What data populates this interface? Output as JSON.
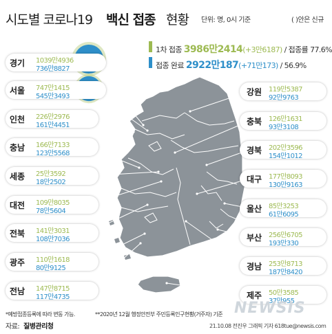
{
  "header": {
    "title_plain": "시도별 코로나19",
    "title_bold": "백신 접종",
    "title_end": "현황",
    "unit": "단위: 명, 0시 기준",
    "new_note": "( )안은 신규"
  },
  "legend": {
    "first": {
      "label": "1차 접종",
      "value": "3986만2414",
      "new": "(+3만6187)",
      "rate_label": "/ 접종률",
      "rate": "77.6%"
    },
    "complete": {
      "label": "접종 완료",
      "value": "2922만187",
      "new": "(+71만173)",
      "rate_sep": "/",
      "rate": "56.9%"
    }
  },
  "colors": {
    "first": "#9dba52",
    "complete": "#2e8fc9",
    "map_fill": "#8c9399",
    "map_stroke": "#ffffff",
    "bubble_ring": "#9dba52"
  },
  "chart_data": {
    "type": "bubble-map",
    "title": "시도별 코로나19 백신 접종 현황",
    "unit": "명",
    "series": [
      {
        "name": "1차 접종",
        "color": "#9dba52"
      },
      {
        "name": "접종 완료",
        "color": "#2e8fc9"
      }
    ],
    "regions": [
      {
        "name": "경기",
        "first": "1039만4936",
        "first_num": 10394936,
        "complete": "736만8827",
        "complete_num": 7368827
      },
      {
        "name": "서울",
        "first": "747만1415",
        "first_num": 7471415,
        "complete": "545만3493",
        "complete_num": 5453493
      },
      {
        "name": "인천",
        "first": "226만2976",
        "first_num": 2262976,
        "complete": "161만4451",
        "complete_num": 1614451
      },
      {
        "name": "충남",
        "first": "166만7133",
        "first_num": 1667133,
        "complete": "123만5568",
        "complete_num": 1235568
      },
      {
        "name": "세종",
        "first": "25만3592",
        "first_num": 253592,
        "complete": "18만2502",
        "complete_num": 182502
      },
      {
        "name": "대전",
        "first": "109만8035",
        "first_num": 1098035,
        "complete": "78만5604",
        "complete_num": 785604
      },
      {
        "name": "전북",
        "first": "141만3031",
        "first_num": 1413031,
        "complete": "108만7036",
        "complete_num": 1087036
      },
      {
        "name": "광주",
        "first": "110만1618",
        "first_num": 1101618,
        "complete": "80만9125",
        "complete_num": 809125
      },
      {
        "name": "전남",
        "first": "147만8715",
        "first_num": 1478715,
        "complete": "117만4735",
        "complete_num": 1174735
      },
      {
        "name": "강원",
        "first": "119만5387",
        "first_num": 1195387,
        "complete": "92만9763",
        "complete_num": 929763
      },
      {
        "name": "충북",
        "first": "126만1631",
        "first_num": 1261631,
        "complete": "93만3108",
        "complete_num": 933108
      },
      {
        "name": "경북",
        "first": "202만3596",
        "first_num": 2023596,
        "complete": "154만1012",
        "complete_num": 1541012
      },
      {
        "name": "대구",
        "first": "177만8093",
        "first_num": 1778093,
        "complete": "130만9163",
        "complete_num": 1309163
      },
      {
        "name": "울산",
        "first": "85만3253",
        "first_num": 853253,
        "complete": "61만6095",
        "complete_num": 616095
      },
      {
        "name": "부산",
        "first": "256만6705",
        "first_num": 2566705,
        "complete": "193만330",
        "complete_num": 1930330
      },
      {
        "name": "경남",
        "first": "253만8713",
        "first_num": 2538713,
        "complete": "187만8420",
        "complete_num": 1878420
      },
      {
        "name": "제주",
        "first": "50만3585",
        "first_num": 503585,
        "complete": "37만955",
        "complete_num": 370955
      }
    ]
  },
  "footer": {
    "note1": "*예방접종등록에 따라 변동 가능.",
    "note2": "**2020년 12월 행정안전부 주민등록인구현황(거주자) 기준",
    "source_label": "자료:",
    "source": "질병관리청",
    "credit": "21.10.08 전진우 그래픽 기자 618tue@newsis.com",
    "watermark": "NEWSIS"
  }
}
